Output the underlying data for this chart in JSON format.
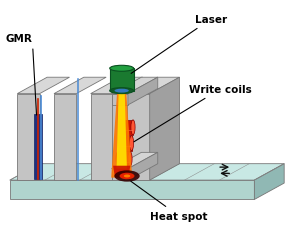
{
  "bg_color": "#ffffff",
  "base_color_front": "#b0d4ce",
  "base_color_top": "#c8e8e4",
  "base_color_right": "#90b8b4",
  "base_edge": "#777777",
  "slider_front": "#c4c4c4",
  "slider_top": "#d8d8d8",
  "slider_right": "#a0a0a0",
  "slider_edge": "#777777",
  "gmr_blue_rect": "#1e3080",
  "gmr_blue_line": "#4a8ad4",
  "gmr_red_line": "#cc2200",
  "laser_green": "#1a7a30",
  "laser_green_top": "#22a040",
  "beam_yellow": "#ffdd00",
  "beam_orange": "#ff7700",
  "beam_red": "#cc1100",
  "coil_red": "#cc1100",
  "coil_red2": "#aa0000",
  "coil_highlight": "#ff5533",
  "heat_dark": "#330000",
  "heat_red": "#ee2200",
  "heat_orange": "#ff8800",
  "write_head_gray": "#c0c0c0",
  "write_head_light": "#d4d4d4",
  "write_head_dark": "#a8a8a8",
  "arrow_color": "#111111",
  "label_gmr": "GMR",
  "label_laser": "Laser",
  "label_write_coils": "Write coils",
  "label_heat_spot": "Heat spot",
  "label_font_size": 7.5,
  "figsize": [
    3.0,
    2.28
  ],
  "dpi": 100
}
